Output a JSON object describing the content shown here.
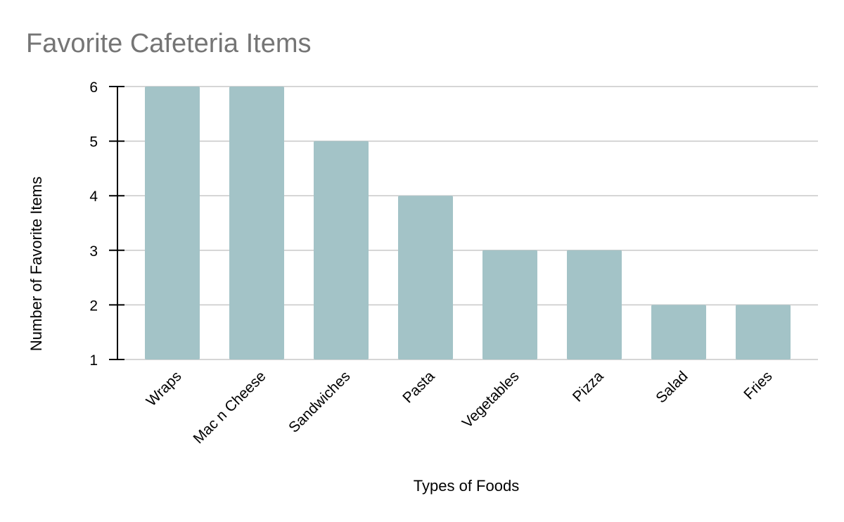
{
  "chart_data": {
    "type": "bar",
    "title": "Favorite Cafeteria Items",
    "xlabel": "Types of Foods",
    "ylabel": "Number of Favorite Items",
    "categories": [
      "Wraps",
      "Mac n Cheese",
      "Sandwiches",
      "Pasta",
      "Vegetables",
      "Pizza",
      "Salad",
      "Fries"
    ],
    "values": [
      6,
      6,
      5,
      4,
      3,
      3,
      2,
      2
    ],
    "ylim": [
      1,
      6
    ],
    "yticks": [
      1,
      2,
      3,
      4,
      5,
      6
    ],
    "grid": true,
    "legend": "none",
    "bar_color": "#a3c3c7"
  }
}
